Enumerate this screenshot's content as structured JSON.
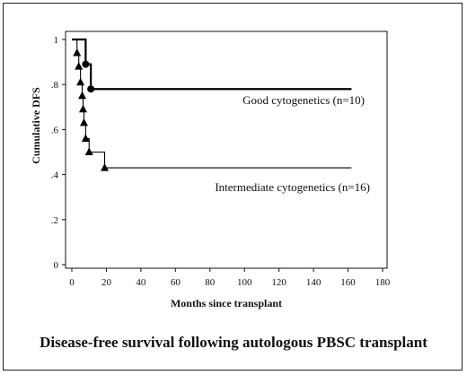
{
  "chart_data": {
    "type": "line",
    "step": true,
    "xlabel": "Months since transplant",
    "ylabel": "Cumulative DFS",
    "xlim": [
      0,
      180
    ],
    "ylim": [
      0,
      1
    ],
    "x_ticks": [
      0,
      20,
      40,
      60,
      80,
      100,
      120,
      140,
      160,
      180
    ],
    "x_tick_labels": [
      "0",
      "20",
      "40",
      "60",
      "80",
      "100",
      "120",
      "140",
      "160",
      "180"
    ],
    "y_ticks": [
      0,
      0.2,
      0.4,
      0.6,
      0.8,
      1
    ],
    "y_tick_labels": [
      "0",
      ".2",
      ".4",
      ".6",
      ".8",
      "1"
    ],
    "grid": false,
    "series": [
      {
        "name": "Good cytogenetics (n=10)",
        "marker": "circle",
        "stroke_width": 2.2,
        "steps": [
          [
            0,
            1.0
          ],
          [
            8,
            0.89
          ],
          [
            11,
            0.78
          ],
          [
            162,
            0.78
          ]
        ],
        "markers": [
          [
            8,
            0.89
          ],
          [
            11,
            0.78
          ]
        ]
      },
      {
        "name": "Intermediate cytogenetics (n=16)",
        "marker": "triangle",
        "stroke_width": 1.1,
        "steps": [
          [
            0,
            1.0
          ],
          [
            3,
            0.94
          ],
          [
            4,
            0.88
          ],
          [
            5,
            0.81
          ],
          [
            6,
            0.75
          ],
          [
            6.5,
            0.69
          ],
          [
            7,
            0.63
          ],
          [
            8,
            0.56
          ],
          [
            10,
            0.5
          ],
          [
            19,
            0.43
          ],
          [
            162,
            0.43
          ]
        ],
        "markers": [
          [
            3,
            0.94
          ],
          [
            4,
            0.88
          ],
          [
            5,
            0.81
          ],
          [
            6,
            0.75
          ],
          [
            6.5,
            0.69
          ],
          [
            7,
            0.63
          ],
          [
            8,
            0.56
          ],
          [
            10,
            0.5
          ],
          [
            19,
            0.43
          ]
        ]
      }
    ],
    "caption": "Disease-free survival following autologous PBSC transplant"
  }
}
